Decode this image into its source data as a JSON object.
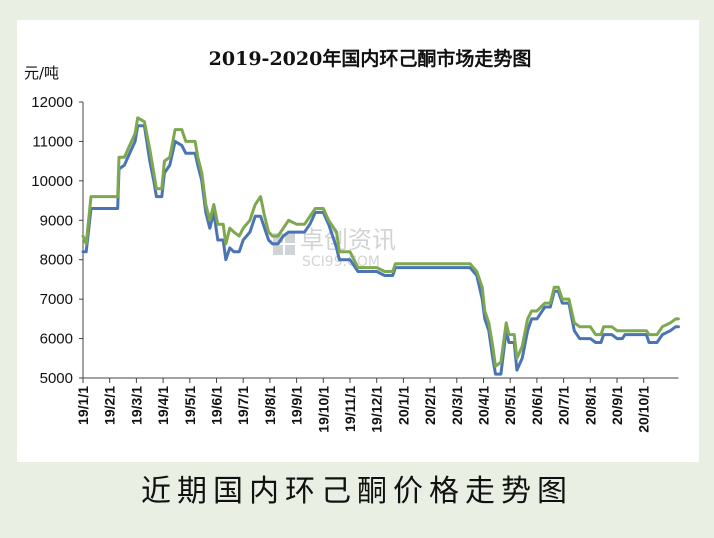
{
  "chart_data": {
    "type": "line",
    "title": "2019-2020年国内环己酮市场走势图",
    "y_unit": "元/吨",
    "ylim": [
      5000,
      12000
    ],
    "y_ticks": [
      "12000",
      "11000",
      "10000",
      "9000",
      "8000",
      "7000",
      "6000",
      "5000"
    ],
    "x_ticks": [
      "19/1/1",
      "19/2/1",
      "19/3/1",
      "19/4/1",
      "19/5/1",
      "19/6/1",
      "19/7/1",
      "19/8/1",
      "19/9/1",
      "19/10/1",
      "19/11/1",
      "19/12/1",
      "20/1/1",
      "20/2/1",
      "20/3/1",
      "20/4/1",
      "20/5/1",
      "20/6/1",
      "20/7/1",
      "20/8/1",
      "20/9/1",
      "20/10/1"
    ],
    "x_range_months": [
      0,
      22.3
    ],
    "series": [
      {
        "color": "#4a74b4",
        "points": [
          [
            0.0,
            8200
          ],
          [
            0.12,
            8200
          ],
          [
            0.3,
            9300
          ],
          [
            1.0,
            9300
          ],
          [
            1.3,
            9300
          ],
          [
            1.35,
            10300
          ],
          [
            1.55,
            10400
          ],
          [
            1.75,
            10700
          ],
          [
            1.95,
            11000
          ],
          [
            2.05,
            11400
          ],
          [
            2.3,
            11400
          ],
          [
            2.5,
            10500
          ],
          [
            2.65,
            10000
          ],
          [
            2.75,
            9600
          ],
          [
            2.95,
            9600
          ],
          [
            3.05,
            10200
          ],
          [
            3.25,
            10400
          ],
          [
            3.45,
            11000
          ],
          [
            3.7,
            10900
          ],
          [
            3.85,
            10700
          ],
          [
            4.2,
            10700
          ],
          [
            4.3,
            10400
          ],
          [
            4.45,
            10000
          ],
          [
            4.6,
            9200
          ],
          [
            4.75,
            8800
          ],
          [
            4.9,
            9200
          ],
          [
            5.05,
            8500
          ],
          [
            5.25,
            8500
          ],
          [
            5.35,
            8000
          ],
          [
            5.5,
            8300
          ],
          [
            5.65,
            8200
          ],
          [
            5.85,
            8200
          ],
          [
            6.0,
            8500
          ],
          [
            6.25,
            8700
          ],
          [
            6.45,
            9100
          ],
          [
            6.65,
            9100
          ],
          [
            6.8,
            8800
          ],
          [
            6.95,
            8500
          ],
          [
            7.1,
            8400
          ],
          [
            7.3,
            8400
          ],
          [
            7.5,
            8600
          ],
          [
            7.7,
            8700
          ],
          [
            8.0,
            8700
          ],
          [
            8.3,
            8700
          ],
          [
            8.5,
            8900
          ],
          [
            8.7,
            9200
          ],
          [
            9.0,
            9200
          ],
          [
            9.2,
            8900
          ],
          [
            9.5,
            8300
          ],
          [
            9.6,
            8000
          ],
          [
            10.0,
            8000
          ],
          [
            10.3,
            7700
          ],
          [
            11.0,
            7700
          ],
          [
            11.3,
            7600
          ],
          [
            11.6,
            7600
          ],
          [
            11.7,
            7800
          ],
          [
            12.3,
            7800
          ],
          [
            13.0,
            7800
          ],
          [
            14.0,
            7800
          ],
          [
            14.5,
            7800
          ],
          [
            14.75,
            7600
          ],
          [
            14.95,
            7000
          ],
          [
            15.05,
            6500
          ],
          [
            15.2,
            6200
          ],
          [
            15.35,
            5500
          ],
          [
            15.45,
            5100
          ],
          [
            15.65,
            5100
          ],
          [
            15.85,
            6200
          ],
          [
            15.95,
            5900
          ],
          [
            16.15,
            5900
          ],
          [
            16.25,
            5200
          ],
          [
            16.45,
            5500
          ],
          [
            16.65,
            6200
          ],
          [
            16.8,
            6500
          ],
          [
            17.0,
            6500
          ],
          [
            17.3,
            6800
          ],
          [
            17.5,
            6800
          ],
          [
            17.65,
            7200
          ],
          [
            17.8,
            7200
          ],
          [
            17.95,
            6900
          ],
          [
            18.2,
            6900
          ],
          [
            18.4,
            6200
          ],
          [
            18.6,
            6000
          ],
          [
            19.0,
            6000
          ],
          [
            19.2,
            5900
          ],
          [
            19.4,
            5900
          ],
          [
            19.5,
            6100
          ],
          [
            19.8,
            6100
          ],
          [
            20.0,
            6000
          ],
          [
            20.2,
            6000
          ],
          [
            20.3,
            6100
          ],
          [
            20.6,
            6100
          ],
          [
            20.9,
            6100
          ],
          [
            21.1,
            6100
          ],
          [
            21.2,
            5900
          ],
          [
            21.5,
            5900
          ],
          [
            21.7,
            6100
          ],
          [
            22.0,
            6200
          ],
          [
            22.2,
            6300
          ],
          [
            22.3,
            6300
          ]
        ]
      },
      {
        "color": "#7ea84f",
        "points": [
          [
            0.0,
            8600
          ],
          [
            0.12,
            8400
          ],
          [
            0.3,
            9600
          ],
          [
            1.0,
            9600
          ],
          [
            1.3,
            9600
          ],
          [
            1.35,
            10600
          ],
          [
            1.55,
            10600
          ],
          [
            1.75,
            10900
          ],
          [
            1.95,
            11200
          ],
          [
            2.05,
            11600
          ],
          [
            2.3,
            11500
          ],
          [
            2.5,
            10800
          ],
          [
            2.65,
            10200
          ],
          [
            2.75,
            9800
          ],
          [
            2.95,
            9800
          ],
          [
            3.05,
            10500
          ],
          [
            3.25,
            10600
          ],
          [
            3.45,
            11300
          ],
          [
            3.7,
            11300
          ],
          [
            3.85,
            11000
          ],
          [
            4.2,
            11000
          ],
          [
            4.3,
            10600
          ],
          [
            4.45,
            10200
          ],
          [
            4.6,
            9400
          ],
          [
            4.75,
            9000
          ],
          [
            4.9,
            9400
          ],
          [
            5.05,
            8900
          ],
          [
            5.25,
            8900
          ],
          [
            5.35,
            8400
          ],
          [
            5.5,
            8800
          ],
          [
            5.65,
            8700
          ],
          [
            5.85,
            8600
          ],
          [
            6.0,
            8800
          ],
          [
            6.25,
            9000
          ],
          [
            6.45,
            9400
          ],
          [
            6.65,
            9600
          ],
          [
            6.8,
            9100
          ],
          [
            6.95,
            8700
          ],
          [
            7.1,
            8600
          ],
          [
            7.3,
            8600
          ],
          [
            7.5,
            8800
          ],
          [
            7.7,
            9000
          ],
          [
            8.0,
            8900
          ],
          [
            8.3,
            8900
          ],
          [
            8.5,
            9100
          ],
          [
            8.7,
            9300
          ],
          [
            9.0,
            9300
          ],
          [
            9.2,
            9000
          ],
          [
            9.5,
            8700
          ],
          [
            9.6,
            8200
          ],
          [
            10.0,
            8200
          ],
          [
            10.3,
            7800
          ],
          [
            11.0,
            7800
          ],
          [
            11.3,
            7700
          ],
          [
            11.6,
            7700
          ],
          [
            11.7,
            7900
          ],
          [
            12.3,
            7900
          ],
          [
            13.0,
            7900
          ],
          [
            14.0,
            7900
          ],
          [
            14.5,
            7900
          ],
          [
            14.75,
            7700
          ],
          [
            14.95,
            7300
          ],
          [
            15.05,
            6700
          ],
          [
            15.2,
            6400
          ],
          [
            15.35,
            5800
          ],
          [
            15.45,
            5300
          ],
          [
            15.65,
            5400
          ],
          [
            15.85,
            6400
          ],
          [
            15.95,
            6100
          ],
          [
            16.15,
            6100
          ],
          [
            16.25,
            5500
          ],
          [
            16.45,
            5800
          ],
          [
            16.65,
            6500
          ],
          [
            16.8,
            6700
          ],
          [
            17.0,
            6700
          ],
          [
            17.3,
            6900
          ],
          [
            17.5,
            6900
          ],
          [
            17.65,
            7300
          ],
          [
            17.8,
            7300
          ],
          [
            17.95,
            7000
          ],
          [
            18.2,
            7000
          ],
          [
            18.4,
            6400
          ],
          [
            18.6,
            6300
          ],
          [
            19.0,
            6300
          ],
          [
            19.2,
            6100
          ],
          [
            19.4,
            6100
          ],
          [
            19.5,
            6300
          ],
          [
            19.8,
            6300
          ],
          [
            20.0,
            6200
          ],
          [
            20.2,
            6200
          ],
          [
            20.3,
            6200
          ],
          [
            20.6,
            6200
          ],
          [
            20.9,
            6200
          ],
          [
            21.1,
            6200
          ],
          [
            21.2,
            6100
          ],
          [
            21.5,
            6100
          ],
          [
            21.7,
            6300
          ],
          [
            22.0,
            6400
          ],
          [
            22.2,
            6500
          ],
          [
            22.3,
            6500
          ]
        ]
      }
    ],
    "grid": false,
    "watermark": {
      "cn": "卓创资讯",
      "en": "SCI99.COM"
    },
    "caption": "近期国内环己酮价格走势图"
  }
}
